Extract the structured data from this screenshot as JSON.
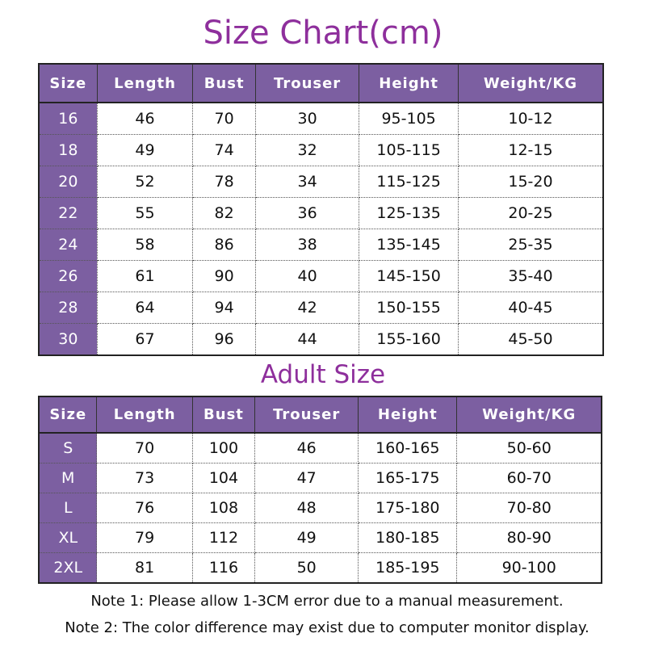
{
  "title": "Size Chart(cm)",
  "colors": {
    "header": "#7c5fa1",
    "title": "#8e2f9c"
  },
  "kids": {
    "headers": [
      "Size",
      "Length",
      "Bust",
      "Trouser",
      "Height",
      "Weight/KG"
    ],
    "rows": [
      [
        "16",
        "46",
        "70",
        "30",
        "95-105",
        "10-12"
      ],
      [
        "18",
        "49",
        "74",
        "32",
        "105-115",
        "12-15"
      ],
      [
        "20",
        "52",
        "78",
        "34",
        "115-125",
        "15-20"
      ],
      [
        "22",
        "55",
        "82",
        "36",
        "125-135",
        "20-25"
      ],
      [
        "24",
        "58",
        "86",
        "38",
        "135-145",
        "25-35"
      ],
      [
        "26",
        "61",
        "90",
        "40",
        "145-150",
        "35-40"
      ],
      [
        "28",
        "64",
        "94",
        "42",
        "150-155",
        "40-45"
      ],
      [
        "30",
        "67",
        "96",
        "44",
        "155-160",
        "45-50"
      ]
    ]
  },
  "adult": {
    "title": "Adult Size",
    "headers": [
      "Size",
      "Length",
      "Bust",
      "Trouser",
      "Height",
      "Weight/KG"
    ],
    "rows": [
      [
        "S",
        "70",
        "100",
        "46",
        "160-165",
        "50-60"
      ],
      [
        "M",
        "73",
        "104",
        "47",
        "165-175",
        "60-70"
      ],
      [
        "L",
        "76",
        "108",
        "48",
        "175-180",
        "70-80"
      ],
      [
        "XL",
        "79",
        "112",
        "49",
        "180-185",
        "80-90"
      ],
      [
        "2XL",
        "81",
        "116",
        "50",
        "185-195",
        "90-100"
      ]
    ]
  },
  "notes": [
    "Note 1: Please allow 1-3CM error due to a manual measurement.",
    "Note 2: The color difference may exist due to computer monitor display."
  ]
}
